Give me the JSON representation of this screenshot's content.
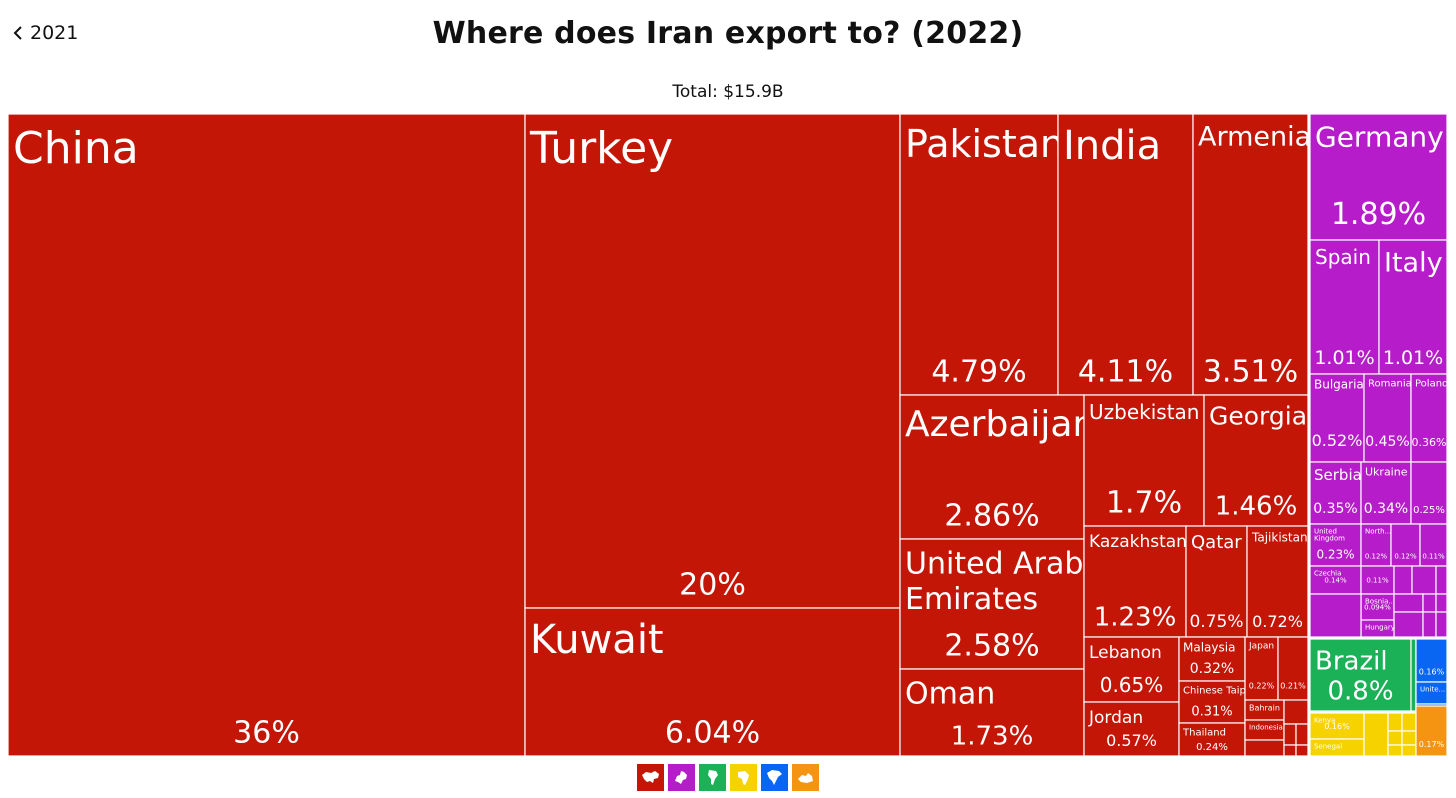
{
  "nav": {
    "back_label": "2021"
  },
  "header": {
    "title": "Where does Iran export to? (2022)",
    "total": "Total: $15.9B"
  },
  "colors": {
    "asia": "#c41607",
    "europe": "#b61cc9",
    "south_america": "#1bb156",
    "africa": "#f5d200",
    "north_america": "#0866f2",
    "oceania": "#f59312"
  },
  "legend": [
    {
      "region": "asia",
      "icon": "asia-map-icon"
    },
    {
      "region": "europe",
      "icon": "europe-map-icon"
    },
    {
      "region": "south_america",
      "icon": "south-america-map-icon"
    },
    {
      "region": "africa",
      "icon": "africa-map-icon"
    },
    {
      "region": "north_america",
      "icon": "north-america-map-icon"
    },
    {
      "region": "oceania",
      "icon": "oceania-map-icon"
    }
  ],
  "chart_data": {
    "type": "treemap",
    "title": "Where does Iran export to? (2022)",
    "subtitle": "Total: $15.9B",
    "unit": "% of total exports",
    "items": [
      {
        "name": "China",
        "value": "36%",
        "region": "asia"
      },
      {
        "name": "Turkey",
        "value": "20%",
        "region": "asia"
      },
      {
        "name": "Kuwait",
        "value": "6.04%",
        "region": "asia"
      },
      {
        "name": "Pakistan",
        "value": "4.79%",
        "region": "asia"
      },
      {
        "name": "India",
        "value": "4.11%",
        "region": "asia"
      },
      {
        "name": "Armenia",
        "value": "3.51%",
        "region": "asia"
      },
      {
        "name": "Azerbaijan",
        "value": "2.86%",
        "region": "asia"
      },
      {
        "name": "Uzbekistan",
        "value": "1.7%",
        "region": "asia"
      },
      {
        "name": "Georgia",
        "value": "1.46%",
        "region": "asia"
      },
      {
        "name": "United Arab Emirates",
        "value": "2.58%",
        "region": "asia"
      },
      {
        "name": "Kazakhstan",
        "value": "1.23%",
        "region": "asia"
      },
      {
        "name": "Qatar",
        "value": "0.75%",
        "region": "asia"
      },
      {
        "name": "Tajikistan",
        "value": "0.72%",
        "region": "asia"
      },
      {
        "name": "Oman",
        "value": "1.73%",
        "region": "asia"
      },
      {
        "name": "Lebanon",
        "value": "0.65%",
        "region": "asia"
      },
      {
        "name": "Jordan",
        "value": "0.57%",
        "region": "asia"
      },
      {
        "name": "Malaysia",
        "value": "0.32%",
        "region": "asia"
      },
      {
        "name": "Chinese Taipei",
        "value": "0.31%",
        "region": "asia"
      },
      {
        "name": "Thailand",
        "value": "0.24%",
        "region": "asia"
      },
      {
        "name": "Japan",
        "value": "0.22%",
        "region": "asia"
      },
      {
        "name": "",
        "value": "0.21%",
        "region": "asia"
      },
      {
        "name": "Bahrain",
        "value": "",
        "region": "asia"
      },
      {
        "name": "Indonesia",
        "value": "",
        "region": "asia"
      },
      {
        "name": "",
        "value": "",
        "region": "asia"
      },
      {
        "name": "",
        "value": "",
        "region": "asia"
      },
      {
        "name": "",
        "value": "",
        "region": "asia"
      },
      {
        "name": "",
        "value": "",
        "region": "asia"
      },
      {
        "name": "",
        "value": "",
        "region": "asia"
      },
      {
        "name": "",
        "value": "",
        "region": "asia"
      },
      {
        "name": "Germany",
        "value": "1.89%",
        "region": "europe"
      },
      {
        "name": "Spain",
        "value": "1.01%",
        "region": "europe"
      },
      {
        "name": "Italy",
        "value": "1.01%",
        "region": "europe"
      },
      {
        "name": "Bulgaria",
        "value": "0.52%",
        "region": "europe"
      },
      {
        "name": "Romania",
        "value": "0.45%",
        "region": "europe"
      },
      {
        "name": "Poland",
        "value": "0.36%",
        "region": "europe"
      },
      {
        "name": "Serbia",
        "value": "0.35%",
        "region": "europe"
      },
      {
        "name": "Ukraine",
        "value": "0.34%",
        "region": "europe"
      },
      {
        "name": "",
        "value": "0.25%",
        "region": "europe"
      },
      {
        "name": "United Kingdom",
        "value": "0.23%",
        "region": "europe"
      },
      {
        "name": "North...",
        "value": "0.12%",
        "region": "europe"
      },
      {
        "name": "",
        "value": "0.12%",
        "region": "europe"
      },
      {
        "name": "",
        "value": "0.11%",
        "region": "europe"
      },
      {
        "name": "Czechia",
        "value": "0.14%",
        "region": "europe"
      },
      {
        "name": "",
        "value": "0.11%",
        "region": "europe"
      },
      {
        "name": "",
        "value": "",
        "region": "europe"
      },
      {
        "name": "",
        "value": "",
        "region": "europe"
      },
      {
        "name": "",
        "value": "",
        "region": "europe"
      },
      {
        "name": "Bosnia...",
        "value": "0.094%",
        "region": "europe"
      },
      {
        "name": "",
        "value": "",
        "region": "europe"
      },
      {
        "name": "",
        "value": "",
        "region": "europe"
      },
      {
        "name": "",
        "value": "",
        "region": "europe"
      },
      {
        "name": "",
        "value": "",
        "region": "europe"
      },
      {
        "name": "Hungary",
        "value": "",
        "region": "europe"
      },
      {
        "name": "",
        "value": "",
        "region": "europe"
      },
      {
        "name": "",
        "value": "",
        "region": "europe"
      },
      {
        "name": "",
        "value": "",
        "region": "europe"
      },
      {
        "name": "Brazil",
        "value": "0.8%",
        "region": "south_america"
      },
      {
        "name": "",
        "value": "",
        "region": "south_america"
      },
      {
        "name": "",
        "value": "",
        "region": "south_america"
      },
      {
        "name": "",
        "value": "0.16%",
        "region": "north_america"
      },
      {
        "name": "Unite...",
        "value": "",
        "region": "north_america"
      },
      {
        "name": "",
        "value": "",
        "region": "north_america"
      },
      {
        "name": "Kenya",
        "value": "0.16%",
        "region": "africa"
      },
      {
        "name": "Senegal",
        "value": "",
        "region": "africa"
      },
      {
        "name": "",
        "value": "",
        "region": "africa"
      },
      {
        "name": "",
        "value": "",
        "region": "africa"
      },
      {
        "name": "",
        "value": "",
        "region": "africa"
      },
      {
        "name": "",
        "value": "",
        "region": "africa"
      },
      {
        "name": "",
        "value": "",
        "region": "africa"
      },
      {
        "name": "",
        "value": "",
        "region": "africa"
      },
      {
        "name": "",
        "value": "",
        "region": "africa"
      },
      {
        "name": "",
        "value": "0.17%",
        "region": "oceania"
      }
    ]
  }
}
